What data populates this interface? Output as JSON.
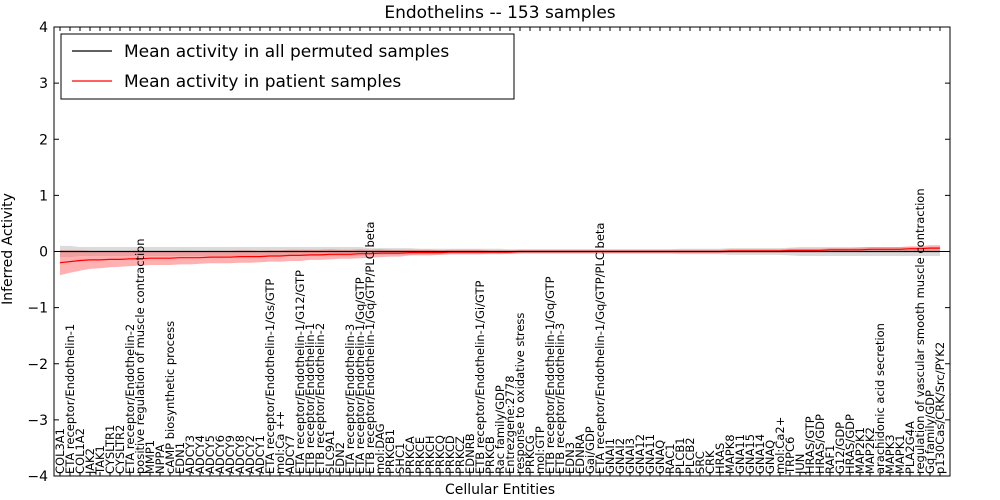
{
  "chart_data": {
    "type": "line",
    "title": "Endothelins -- 153 samples",
    "xlabel": "Cellular Entities",
    "ylabel": "Inferred Activity",
    "ylim": [
      -4,
      4
    ],
    "yticks": [
      "−4",
      "−3",
      "−2",
      "−1",
      "0",
      "1",
      "2",
      "3",
      "4"
    ],
    "legend_placement": "top-left",
    "grid": false,
    "categories": [
      "COL3A1",
      "ETA receptor/Endothelin-1",
      "COL1A2",
      "JAK2",
      "TAK1",
      "CYSLTR1",
      "CYSLTR2",
      "ETA receptor/Endothelin-2",
      "positive regulation of muscle contraction",
      "MMP1",
      "NPPA",
      "cAMP biosynthetic process",
      "EDN1",
      "ADCY3",
      "ADCY4",
      "ADCY5",
      "ADCY6",
      "ADCY9",
      "ADCY8",
      "ADCY2",
      "ADCY1",
      "ETA receptor/Endothelin-1/Gs/GTP",
      "mol:Ca ++",
      "ADCY7",
      "ETA receptor/Endothelin-1/G12/GTP",
      "ETB receptor/Endothelin-1",
      "ETB receptor/Endothelin-2",
      "SLC9A1",
      "EDN2",
      "ETA receptor/Endothelin-3",
      "ETA receptor/Endothelin-1/Gq/GTP",
      "ETB receptor/Endothelin-1/Gq/GTP/PLC beta",
      "mol:DAG",
      "PRKCB1",
      "SHC1",
      "PRKCA",
      "PRKCE",
      "PRKCH",
      "PRKCQ",
      "PRKCD",
      "PRKCZ",
      "EDNRB",
      "ETB receptor/Endothelin-1/Gi/GTP",
      "PRKCB",
      "Rac family/GDP",
      "Entrezgene:2778",
      "response to oxidative stress",
      "PRKCG",
      "mol:GTP",
      "ETB receptor/Endothelin-1/Gq/GTP",
      "ETB receptor/Endothelin-3",
      "EDN3",
      "EDNRA",
      "Gai/GDP",
      "ETA receptor/Endothelin-1/Gq/GTP/PLC beta",
      "GNAI1",
      "GNAI2",
      "GNAI3",
      "GNA12",
      "GNA11",
      "GNAQ",
      "RAC1",
      "PLCB1",
      "PLCB2",
      "SRC",
      "CRK",
      "HRAS",
      "MAPK8",
      "GNA11",
      "GNA15",
      "GNA14",
      "GNAQ",
      "mol:Ca2+",
      "TRPC6",
      "JUN",
      "HRAS/GTP",
      "HRAS/GDP",
      "RAF1",
      "G12/GDP",
      "HRAS/GDP",
      "MAP2K1",
      "MAP2K2",
      "arachidonic acid secretion",
      "MAPK3",
      "MAPK1",
      "PLA2G4A",
      "regulation of vascular smooth muscle contraction",
      "Gq family/GDP",
      "p130Cas/CRK/Src/PYK2"
    ],
    "series": [
      {
        "name": "Mean activity in all permuted samples",
        "color": "#000000",
        "band_color": "#b0b0b0",
        "values": [
          0.0,
          0.0,
          0.0,
          0.0,
          0.0,
          0.0,
          0.0,
          0.0,
          0.0,
          0.0,
          0.0,
          0.0,
          0.0,
          0.0,
          0.0,
          0.0,
          0.0,
          0.0,
          0.0,
          0.0,
          0.0,
          0.0,
          0.0,
          0.0,
          0.0,
          0.0,
          0.0,
          0.0,
          0.0,
          0.0,
          0.0,
          0.0,
          0.0,
          0.0,
          0.0,
          0.0,
          0.0,
          0.0,
          0.0,
          0.0,
          0.0,
          0.0,
          0.0,
          0.0,
          0.0,
          0.0,
          0.0,
          0.0,
          0.0,
          0.0,
          0.0,
          0.0,
          0.0,
          0.0,
          0.0,
          0.0,
          0.0,
          0.0,
          0.0,
          0.0,
          0.0,
          0.0,
          0.0,
          0.0,
          0.0,
          0.0,
          0.0,
          0.0,
          0.0,
          0.0,
          0.0,
          0.0,
          0.0,
          0.0,
          0.0,
          0.0,
          0.0,
          0.0,
          0.0,
          0.0,
          0.0,
          0.0,
          0.0,
          0.0,
          0.0,
          0.0,
          0.0,
          0.0,
          0.0
        ],
        "band": [
          0.1,
          0.1,
          0.08,
          0.08,
          0.08,
          0.08,
          0.08,
          0.08,
          0.08,
          0.08,
          0.08,
          0.08,
          0.08,
          0.08,
          0.08,
          0.08,
          0.08,
          0.08,
          0.08,
          0.08,
          0.08,
          0.08,
          0.08,
          0.08,
          0.08,
          0.08,
          0.08,
          0.08,
          0.08,
          0.08,
          0.08,
          0.06,
          0.06,
          0.06,
          0.06,
          0.06,
          0.05,
          0.05,
          0.05,
          0.05,
          0.05,
          0.05,
          0.05,
          0.05,
          0.05,
          0.04,
          0.04,
          0.04,
          0.04,
          0.04,
          0.04,
          0.04,
          0.04,
          0.04,
          0.04,
          0.04,
          0.04,
          0.04,
          0.04,
          0.04,
          0.04,
          0.04,
          0.05,
          0.05,
          0.05,
          0.05,
          0.05,
          0.06,
          0.06,
          0.06,
          0.06,
          0.06,
          0.06,
          0.07,
          0.08,
          0.08,
          0.08,
          0.08,
          0.08,
          0.08,
          0.08,
          0.08,
          0.08,
          0.08,
          0.08,
          0.08,
          0.08,
          0.08,
          0.08
        ]
      },
      {
        "name": "Mean activity in patient samples",
        "color": "#ff0000",
        "band_color": "#ff7070",
        "values": [
          -0.2,
          -0.18,
          -0.16,
          -0.15,
          -0.15,
          -0.14,
          -0.14,
          -0.13,
          -0.13,
          -0.12,
          -0.12,
          -0.12,
          -0.11,
          -0.11,
          -0.11,
          -0.1,
          -0.1,
          -0.1,
          -0.09,
          -0.09,
          -0.09,
          -0.08,
          -0.08,
          -0.07,
          -0.07,
          -0.06,
          -0.06,
          -0.05,
          -0.05,
          -0.05,
          -0.04,
          -0.04,
          -0.03,
          -0.03,
          -0.03,
          -0.02,
          -0.02,
          -0.02,
          -0.02,
          -0.01,
          -0.01,
          -0.01,
          -0.01,
          -0.01,
          -0.01,
          -0.01,
          0.0,
          0.0,
          0.0,
          0.0,
          0.0,
          0.0,
          0.0,
          0.0,
          0.0,
          0.0,
          0.0,
          0.0,
          0.0,
          0.0,
          0.0,
          0.0,
          0.0,
          0.0,
          0.0,
          0.0,
          0.0,
          0.01,
          0.01,
          0.01,
          0.01,
          0.01,
          0.01,
          0.02,
          0.02,
          0.02,
          0.02,
          0.03,
          0.03,
          0.03,
          0.03,
          0.04,
          0.04,
          0.04,
          0.04,
          0.05,
          0.05,
          0.06,
          0.06
        ],
        "band": [
          0.22,
          0.2,
          0.18,
          0.16,
          0.15,
          0.14,
          0.13,
          0.13,
          0.12,
          0.12,
          0.12,
          0.12,
          0.12,
          0.12,
          0.11,
          0.11,
          0.11,
          0.11,
          0.11,
          0.11,
          0.1,
          0.1,
          0.1,
          0.1,
          0.1,
          0.09,
          0.09,
          0.09,
          0.08,
          0.08,
          0.08,
          0.07,
          0.07,
          0.06,
          0.06,
          0.05,
          0.05,
          0.05,
          0.04,
          0.04,
          0.04,
          0.04,
          0.04,
          0.03,
          0.03,
          0.03,
          0.03,
          0.03,
          0.03,
          0.03,
          0.03,
          0.03,
          0.03,
          0.03,
          0.03,
          0.03,
          0.03,
          0.03,
          0.03,
          0.03,
          0.03,
          0.03,
          0.03,
          0.03,
          0.03,
          0.03,
          0.03,
          0.03,
          0.03,
          0.03,
          0.03,
          0.03,
          0.03,
          0.03,
          0.03,
          0.03,
          0.03,
          0.03,
          0.03,
          0.03,
          0.04,
          0.04,
          0.04,
          0.04,
          0.04,
          0.04,
          0.04,
          0.05,
          0.05
        ]
      }
    ]
  }
}
